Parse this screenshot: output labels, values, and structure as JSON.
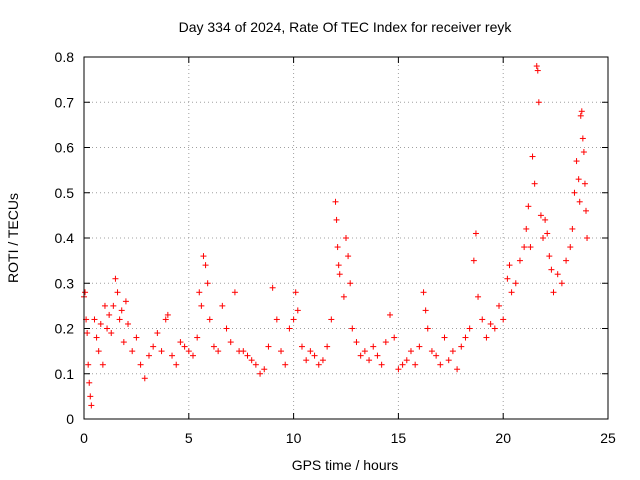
{
  "chart_data": {
    "type": "scatter",
    "title": "Day 334 of 2024, Rate Of TEC Index for receiver reyk",
    "xlabel": "GPS time / hours",
    "ylabel": "ROTI / TECUs",
    "xlim": [
      0,
      25
    ],
    "ylim": [
      0,
      0.8
    ],
    "xticks": [
      0,
      5,
      10,
      15,
      20,
      25
    ],
    "yticks": [
      0,
      0.1,
      0.2,
      0.3,
      0.4,
      0.5,
      0.6,
      0.7,
      0.8
    ],
    "grid": true,
    "marker": "+",
    "color": "#ff0000",
    "series": [
      {
        "name": "ROTI",
        "points": [
          [
            0.0,
            0.27
          ],
          [
            0.05,
            0.28
          ],
          [
            0.1,
            0.22
          ],
          [
            0.15,
            0.19
          ],
          [
            0.2,
            0.12
          ],
          [
            0.25,
            0.08
          ],
          [
            0.3,
            0.05
          ],
          [
            0.35,
            0.03
          ],
          [
            0.5,
            0.22
          ],
          [
            0.6,
            0.18
          ],
          [
            0.7,
            0.15
          ],
          [
            0.8,
            0.21
          ],
          [
            0.9,
            0.12
          ],
          [
            1.0,
            0.25
          ],
          [
            1.1,
            0.2
          ],
          [
            1.2,
            0.23
          ],
          [
            1.3,
            0.19
          ],
          [
            1.4,
            0.25
          ],
          [
            1.5,
            0.31
          ],
          [
            1.6,
            0.28
          ],
          [
            1.7,
            0.22
          ],
          [
            1.8,
            0.24
          ],
          [
            1.9,
            0.17
          ],
          [
            2.0,
            0.26
          ],
          [
            2.1,
            0.21
          ],
          [
            2.3,
            0.15
          ],
          [
            2.5,
            0.18
          ],
          [
            2.7,
            0.12
          ],
          [
            2.9,
            0.09
          ],
          [
            3.1,
            0.14
          ],
          [
            3.3,
            0.16
          ],
          [
            3.5,
            0.19
          ],
          [
            3.7,
            0.15
          ],
          [
            3.9,
            0.22
          ],
          [
            4.0,
            0.23
          ],
          [
            4.2,
            0.14
          ],
          [
            4.4,
            0.12
          ],
          [
            4.6,
            0.17
          ],
          [
            4.8,
            0.16
          ],
          [
            5.0,
            0.15
          ],
          [
            5.2,
            0.14
          ],
          [
            5.4,
            0.18
          ],
          [
            5.5,
            0.28
          ],
          [
            5.6,
            0.25
          ],
          [
            5.7,
            0.36
          ],
          [
            5.8,
            0.34
          ],
          [
            5.9,
            0.3
          ],
          [
            6.0,
            0.22
          ],
          [
            6.2,
            0.16
          ],
          [
            6.4,
            0.15
          ],
          [
            6.6,
            0.25
          ],
          [
            6.8,
            0.2
          ],
          [
            7.0,
            0.17
          ],
          [
            7.2,
            0.28
          ],
          [
            7.4,
            0.15
          ],
          [
            7.6,
            0.15
          ],
          [
            7.8,
            0.14
          ],
          [
            8.0,
            0.13
          ],
          [
            8.2,
            0.12
          ],
          [
            8.4,
            0.1
          ],
          [
            8.6,
            0.11
          ],
          [
            8.8,
            0.16
          ],
          [
            9.0,
            0.29
          ],
          [
            9.2,
            0.22
          ],
          [
            9.4,
            0.15
          ],
          [
            9.6,
            0.12
          ],
          [
            9.8,
            0.2
          ],
          [
            10.0,
            0.22
          ],
          [
            10.1,
            0.28
          ],
          [
            10.2,
            0.24
          ],
          [
            10.4,
            0.16
          ],
          [
            10.6,
            0.13
          ],
          [
            10.8,
            0.15
          ],
          [
            11.0,
            0.14
          ],
          [
            11.2,
            0.12
          ],
          [
            11.4,
            0.13
          ],
          [
            11.6,
            0.16
          ],
          [
            11.8,
            0.22
          ],
          [
            12.0,
            0.48
          ],
          [
            12.05,
            0.44
          ],
          [
            12.1,
            0.38
          ],
          [
            12.15,
            0.34
          ],
          [
            12.2,
            0.32
          ],
          [
            12.4,
            0.27
          ],
          [
            12.5,
            0.4
          ],
          [
            12.6,
            0.36
          ],
          [
            12.7,
            0.3
          ],
          [
            12.8,
            0.2
          ],
          [
            13.0,
            0.17
          ],
          [
            13.2,
            0.14
          ],
          [
            13.4,
            0.15
          ],
          [
            13.6,
            0.13
          ],
          [
            13.8,
            0.16
          ],
          [
            14.0,
            0.14
          ],
          [
            14.2,
            0.12
          ],
          [
            14.4,
            0.17
          ],
          [
            14.6,
            0.23
          ],
          [
            14.8,
            0.18
          ],
          [
            15.0,
            0.11
          ],
          [
            15.2,
            0.12
          ],
          [
            15.4,
            0.13
          ],
          [
            15.6,
            0.15
          ],
          [
            15.8,
            0.12
          ],
          [
            16.0,
            0.16
          ],
          [
            16.2,
            0.28
          ],
          [
            16.3,
            0.24
          ],
          [
            16.4,
            0.2
          ],
          [
            16.6,
            0.15
          ],
          [
            16.8,
            0.14
          ],
          [
            17.0,
            0.12
          ],
          [
            17.2,
            0.18
          ],
          [
            17.4,
            0.13
          ],
          [
            17.6,
            0.15
          ],
          [
            17.8,
            0.11
          ],
          [
            18.0,
            0.16
          ],
          [
            18.2,
            0.18
          ],
          [
            18.4,
            0.2
          ],
          [
            18.6,
            0.35
          ],
          [
            18.7,
            0.41
          ],
          [
            18.8,
            0.27
          ],
          [
            19.0,
            0.22
          ],
          [
            19.2,
            0.18
          ],
          [
            19.4,
            0.21
          ],
          [
            19.6,
            0.2
          ],
          [
            19.8,
            0.25
          ],
          [
            20.0,
            0.22
          ],
          [
            20.2,
            0.31
          ],
          [
            20.3,
            0.34
          ],
          [
            20.4,
            0.28
          ],
          [
            20.6,
            0.3
          ],
          [
            20.8,
            0.35
          ],
          [
            21.0,
            0.38
          ],
          [
            21.1,
            0.42
          ],
          [
            21.2,
            0.47
          ],
          [
            21.3,
            0.38
          ],
          [
            21.4,
            0.58
          ],
          [
            21.5,
            0.52
          ],
          [
            21.6,
            0.78
          ],
          [
            21.65,
            0.77
          ],
          [
            21.7,
            0.7
          ],
          [
            21.8,
            0.45
          ],
          [
            21.9,
            0.4
          ],
          [
            22.0,
            0.44
          ],
          [
            22.1,
            0.41
          ],
          [
            22.2,
            0.36
          ],
          [
            22.3,
            0.33
          ],
          [
            22.4,
            0.28
          ],
          [
            22.6,
            0.32
          ],
          [
            22.8,
            0.3
          ],
          [
            23.0,
            0.35
          ],
          [
            23.2,
            0.38
          ],
          [
            23.3,
            0.42
          ],
          [
            23.4,
            0.5
          ],
          [
            23.5,
            0.57
          ],
          [
            23.6,
            0.53
          ],
          [
            23.65,
            0.48
          ],
          [
            23.7,
            0.67
          ],
          [
            23.75,
            0.68
          ],
          [
            23.8,
            0.62
          ],
          [
            23.85,
            0.59
          ],
          [
            23.9,
            0.52
          ],
          [
            23.95,
            0.46
          ],
          [
            24.0,
            0.4
          ]
        ]
      }
    ]
  }
}
